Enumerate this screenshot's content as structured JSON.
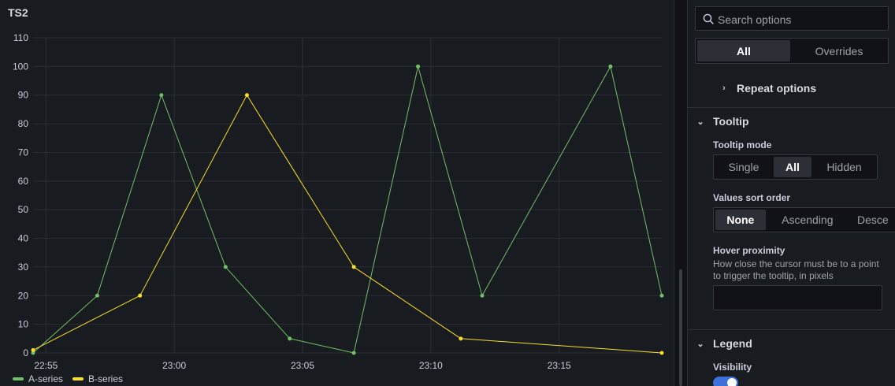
{
  "panel": {
    "title": "TS2"
  },
  "chart_data": {
    "type": "line",
    "title": "TS2",
    "xlabel": "",
    "ylabel": "",
    "x_ticks": [
      "22:55",
      "23:00",
      "23:05",
      "23:10",
      "23:15"
    ],
    "y_ticks": [
      0,
      10,
      20,
      30,
      40,
      50,
      60,
      70,
      80,
      90,
      100,
      110
    ],
    "ylim": [
      0,
      110
    ],
    "xlim": [
      "22:54:30",
      "23:19:00"
    ],
    "grid": true,
    "legend_position": "bottom-left",
    "series": [
      {
        "name": "A-series",
        "color": "#73bf69",
        "points": [
          {
            "x": "22:54:30",
            "y": 0
          },
          {
            "x": "22:57:00",
            "y": 20
          },
          {
            "x": "22:59:30",
            "y": 90
          },
          {
            "x": "23:02:00",
            "y": 30
          },
          {
            "x": "23:04:30",
            "y": 5
          },
          {
            "x": "23:07:00",
            "y": 0
          },
          {
            "x": "23:09:30",
            "y": 100
          },
          {
            "x": "23:12:00",
            "y": 20
          },
          {
            "x": "23:17:00",
            "y": 100
          },
          {
            "x": "23:19:00",
            "y": 20
          }
        ]
      },
      {
        "name": "B-series",
        "color": "#fade2a",
        "points": [
          {
            "x": "22:54:30",
            "y": 1
          },
          {
            "x": "22:58:40",
            "y": 20
          },
          {
            "x": "23:02:50",
            "y": 90
          },
          {
            "x": "23:07:00",
            "y": 30
          },
          {
            "x": "23:11:10",
            "y": 5
          },
          {
            "x": "23:19:00",
            "y": 0
          }
        ]
      }
    ]
  },
  "options": {
    "search_placeholder": "Search options",
    "tabs": [
      "All",
      "Overrides"
    ],
    "repeat_options": "Repeat options",
    "tooltip": {
      "section": "Tooltip",
      "mode_label": "Tooltip mode",
      "modes": [
        "Single",
        "All",
        "Hidden"
      ],
      "sort_label": "Values sort order",
      "sort_options": [
        "None",
        "Ascending",
        "Desce"
      ],
      "hover_label": "Hover proximity",
      "hover_desc": "How close the cursor must be to a point to trigger the tooltip, in pixels",
      "hover_value": ""
    },
    "legend": {
      "section": "Legend",
      "visibility_label": "Visibility",
      "visibility_on": true
    }
  }
}
